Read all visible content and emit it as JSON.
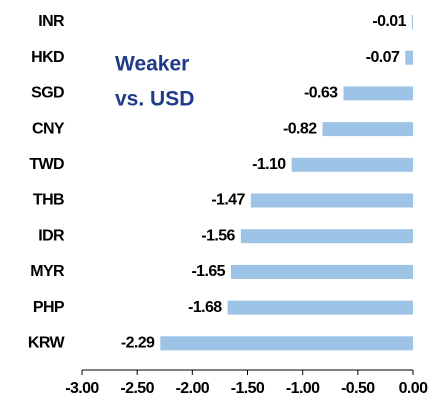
{
  "chart_data": {
    "type": "barh",
    "annotations": [
      "Weaker",
      "vs. USD"
    ],
    "categories": [
      "INR",
      "HKD",
      "SGD",
      "CNY",
      "TWD",
      "THB",
      "IDR",
      "MYR",
      "PHP",
      "KRW"
    ],
    "values": [
      -0.01,
      -0.07,
      -0.63,
      -0.82,
      -1.1,
      -1.47,
      -1.56,
      -1.65,
      -1.68,
      -2.29
    ],
    "value_labels": [
      "-0.01",
      "-0.07",
      "-0.63",
      "-0.82",
      "-1.10",
      "-1.47",
      "-1.56",
      "-1.65",
      "-1.68",
      "-2.29"
    ],
    "color": "#9dc3e6",
    "xlim": [
      -3,
      0
    ],
    "xticks": [
      {
        "value": -3,
        "label": "-3.00"
      },
      {
        "value": -2.5,
        "label": "-2.50"
      },
      {
        "value": -2,
        "label": "-2.00"
      },
      {
        "value": -1.5,
        "label": "-1.50"
      },
      {
        "value": -1,
        "label": "-1.00"
      },
      {
        "value": -0.5,
        "label": "-0.50"
      },
      {
        "value": 0,
        "label": "0.00"
      }
    ],
    "grid": false
  }
}
